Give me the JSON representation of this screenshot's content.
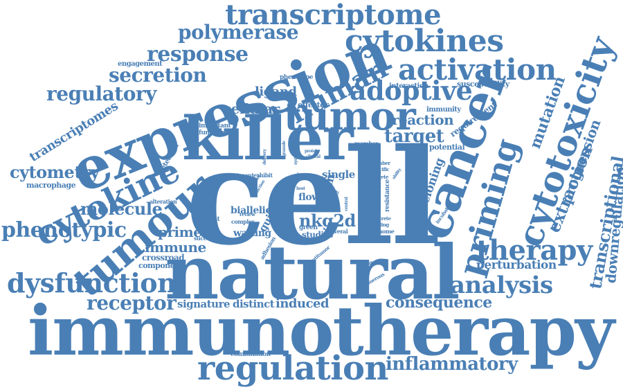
{
  "cloud": {
    "color": "#4a7fb5",
    "words": {
      "cell": "cell",
      "natural": "natural",
      "immunotherapy": "immunotherapy",
      "expression": "expression",
      "killer": "killer",
      "cancer": "cancer",
      "tumor": "tumor",
      "tumour": "tumour",
      "cytokine": "cytokine",
      "cytotoxicity": "cytotoxicity",
      "priming": "priming",
      "regulation": "regulation",
      "transcriptome": "transcriptome",
      "cytokines": "cytokines",
      "activation": "activation",
      "adoptive": "adoptive",
      "human": "human",
      "polymerase": "polymerase",
      "response": "response",
      "secretion": "secretion",
      "regulatory": "regulatory",
      "therapy": "therapy",
      "analysis": "analysis",
      "dysfunction": "dysfunction",
      "receptor": "receptor",
      "phenotypic": "phenotypic",
      "cytometry": "cytometry",
      "molecule": "molecule",
      "inflammatory": "inflammatory",
      "consequence": "consequence",
      "target": "target",
      "reaction": "reaction",
      "mutation": "mutation",
      "extraction": "extraction",
      "progression": "progression",
      "transcriptional": "transcriptional",
      "downregulation": "downregulation",
      "transcriptomes": "transcriptomes",
      "cellular": "cellular",
      "ligand": "ligand",
      "nkg2d": "nkg2d",
      "primed": "primed",
      "immune": "immune",
      "signature": "signature",
      "distinct": "distinct",
      "induced": "induced",
      "perturbation": "perturbation",
      "cloning": "cloning",
      "innate": "innate",
      "chain": "chain",
      "guide": "guide",
      "profile": "profile",
      "single": "single",
      "flow": "flow",
      "biallelic": "biallelic",
      "waiting": "waiting",
      "studies": "studies",
      "green": "green",
      "crossroad": "crossroad",
      "component": "component",
      "macrophage": "macrophage",
      "engagement": "engagement",
      "phenotype": "phenotype",
      "effector": "effector",
      "interaction": "interaction",
      "susceptibility": "susceptibility",
      "immunity": "immunity",
      "requirement": "requirement",
      "potential": "potential",
      "member": "member",
      "detection": "detection",
      "important": "important",
      "functional": "functional",
      "treatment": "treatment",
      "exhibit": "exhibit",
      "detect": "detect",
      "alteration": "alteration",
      "element": "element",
      "successful": "successful",
      "complex": "complex",
      "review": "review",
      "adhesion": "adhesion",
      "antitumor": "antitumor",
      "several": "several",
      "finding": "finding",
      "genome": "genome",
      "discrete": "discrete",
      "resistance": "resistance",
      "specific": "specific",
      "secrete": "secrete",
      "number": "number",
      "incubation": "incubation",
      "combination": "combination",
      "numerous": "numerous",
      "delivery": "delivery",
      "granule": "granule",
      "protein": "protein",
      "clinical": "clinical",
      "light": "light",
      "event": "event",
      "study": "study",
      "result": "result",
      "ability": "ability",
      "normal": "normal",
      "central": "central",
      "host": "host",
      "system": "system",
      "selection": "selection"
    }
  }
}
